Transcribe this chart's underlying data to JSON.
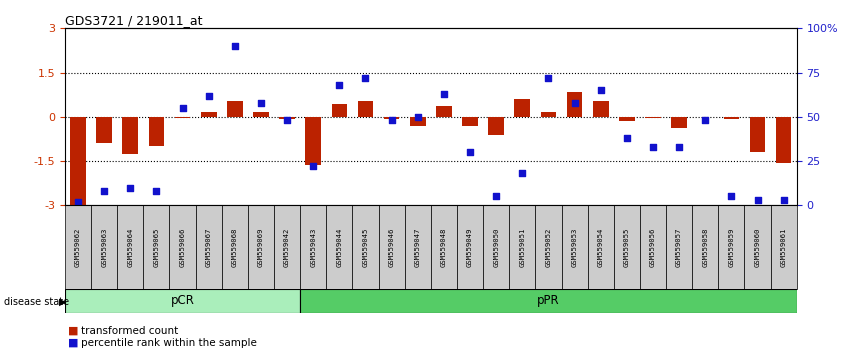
{
  "title": "GDS3721 / 219011_at",
  "samples": [
    "GSM559062",
    "GSM559063",
    "GSM559064",
    "GSM559065",
    "GSM559066",
    "GSM559067",
    "GSM559068",
    "GSM559069",
    "GSM559042",
    "GSM559043",
    "GSM559044",
    "GSM559045",
    "GSM559046",
    "GSM559047",
    "GSM559048",
    "GSM559049",
    "GSM559050",
    "GSM559051",
    "GSM559052",
    "GSM559053",
    "GSM559054",
    "GSM559055",
    "GSM559056",
    "GSM559057",
    "GSM559058",
    "GSM559059",
    "GSM559060",
    "GSM559061"
  ],
  "transformed_count": [
    -3.0,
    -0.9,
    -1.25,
    -1.0,
    -0.05,
    0.15,
    0.55,
    0.15,
    -0.08,
    -1.63,
    0.45,
    0.55,
    -0.08,
    -0.3,
    0.35,
    -0.3,
    -0.6,
    0.6,
    0.18,
    0.85,
    0.55,
    -0.15,
    -0.05,
    -0.38,
    0.0,
    -0.08,
    -1.2,
    -1.55
  ],
  "percentile_rank": [
    2,
    8,
    10,
    8,
    55,
    62,
    90,
    58,
    48,
    22,
    68,
    72,
    48,
    50,
    63,
    30,
    5,
    18,
    72,
    58,
    65,
    38,
    33,
    33,
    48,
    5,
    3,
    3
  ],
  "pcr_count": 9,
  "ppr_count": 19,
  "ylim_left": [
    -3,
    3
  ],
  "ylim_right": [
    0,
    100
  ],
  "yticks_left": [
    -3,
    -1.5,
    0,
    1.5,
    3
  ],
  "ytick_labels_left": [
    "-3",
    "-1.5",
    "0",
    "1.5",
    "3"
  ],
  "yticks_right": [
    0,
    25,
    50,
    75,
    100
  ],
  "ytick_labels_right": [
    "0",
    "25",
    "50",
    "75",
    "100%"
  ],
  "bar_color": "#bb2200",
  "scatter_color": "#1111cc",
  "pcr_color": "#aaeebb",
  "ppr_color": "#55cc66",
  "label_bg_color": "#cccccc",
  "left_axis_color": "#cc3300",
  "right_axis_color": "#2222cc"
}
